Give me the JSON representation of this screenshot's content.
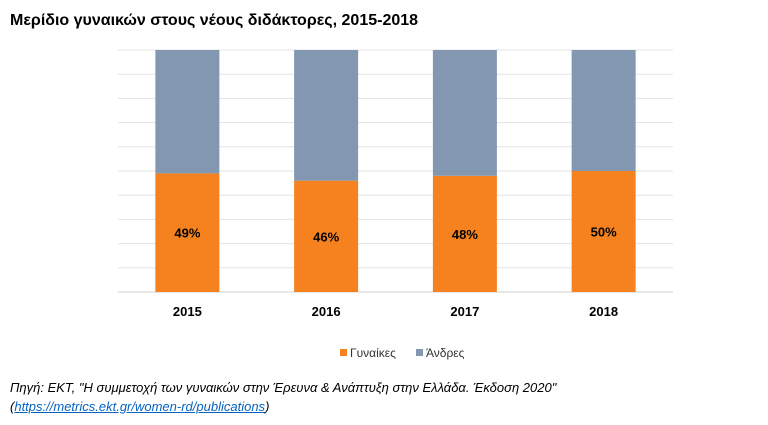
{
  "chart_data": {
    "type": "bar",
    "stacked": true,
    "title": "Μερίδιο γυναικών στους νέους διδάκτορες, 2015-2018",
    "categories": [
      "2015",
      "2016",
      "2017",
      "2018"
    ],
    "series": [
      {
        "name": "Γυναίκες",
        "values": [
          49,
          46,
          48,
          50
        ],
        "labels": [
          "49%",
          "46%",
          "48%",
          "50%"
        ],
        "color": "#f5821f"
      },
      {
        "name": "Άνδρες",
        "values": [
          51,
          54,
          52,
          50
        ],
        "color": "#8497b0"
      }
    ],
    "ylim": [
      0,
      100
    ],
    "grid": true,
    "legend": "bottom"
  },
  "source": {
    "text": "Πηγή: ΕΚΤ, \"Η συμμετοχή των γυναικών στην Έρευνα & Ανάπτυξη στην Ελλάδα. Έκδοση 2020\"",
    "open_paren": "(",
    "link": "https://metrics.ekt.gr/women-rd/publications",
    "close_paren": ")"
  }
}
